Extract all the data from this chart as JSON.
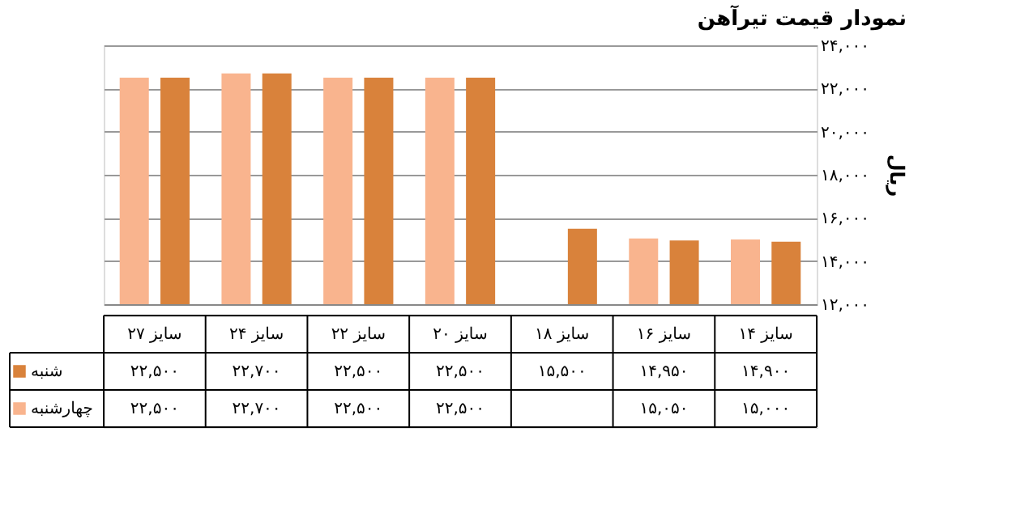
{
  "chart_data": {
    "type": "bar",
    "title": "نمودار قیمت تیرآهن",
    "ylabel": "ریال",
    "categories": [
      "سایز ۲۷",
      "سایز ۲۴",
      "سایز ۲۲",
      "سایز ۲۰",
      "سایز ۱۸",
      "سایز ۱۶",
      "سایز ۱۴"
    ],
    "series": [
      {
        "name": "شنبه",
        "color": "#d9823b",
        "values": [
          22500,
          22700,
          22500,
          22500,
          15500,
          14950,
          14900
        ],
        "value_labels": [
          "۲۲,۵۰۰",
          "۲۲,۷۰۰",
          "۲۲,۵۰۰",
          "۲۲,۵۰۰",
          "۱۵,۵۰۰",
          "۱۴,۹۵۰",
          "۱۴,۹۰۰"
        ]
      },
      {
        "name": "چهارشنبه",
        "color": "#f9b48e",
        "values": [
          22500,
          22700,
          22500,
          22500,
          null,
          15050,
          15000
        ],
        "value_labels": [
          "۲۲,۵۰۰",
          "۲۲,۷۰۰",
          "۲۲,۵۰۰",
          "۲۲,۵۰۰",
          null,
          "۱۵,۰۵۰",
          "۱۵,۰۰۰"
        ]
      }
    ],
    "ylim": [
      12000,
      24000
    ],
    "yticks": [
      {
        "value": 12000,
        "label": "۱۲,۰۰۰"
      },
      {
        "value": 14000,
        "label": "۱۴,۰۰۰"
      },
      {
        "value": 16000,
        "label": "۱۶,۰۰۰"
      },
      {
        "value": 18000,
        "label": "۱۸,۰۰۰"
      },
      {
        "value": 20000,
        "label": "۲۰,۰۰۰"
      },
      {
        "value": 22000,
        "label": "۲۲,۰۰۰"
      },
      {
        "value": 24000,
        "label": "۲۴,۰۰۰"
      }
    ],
    "grid": "y",
    "legend": "bottom left"
  }
}
